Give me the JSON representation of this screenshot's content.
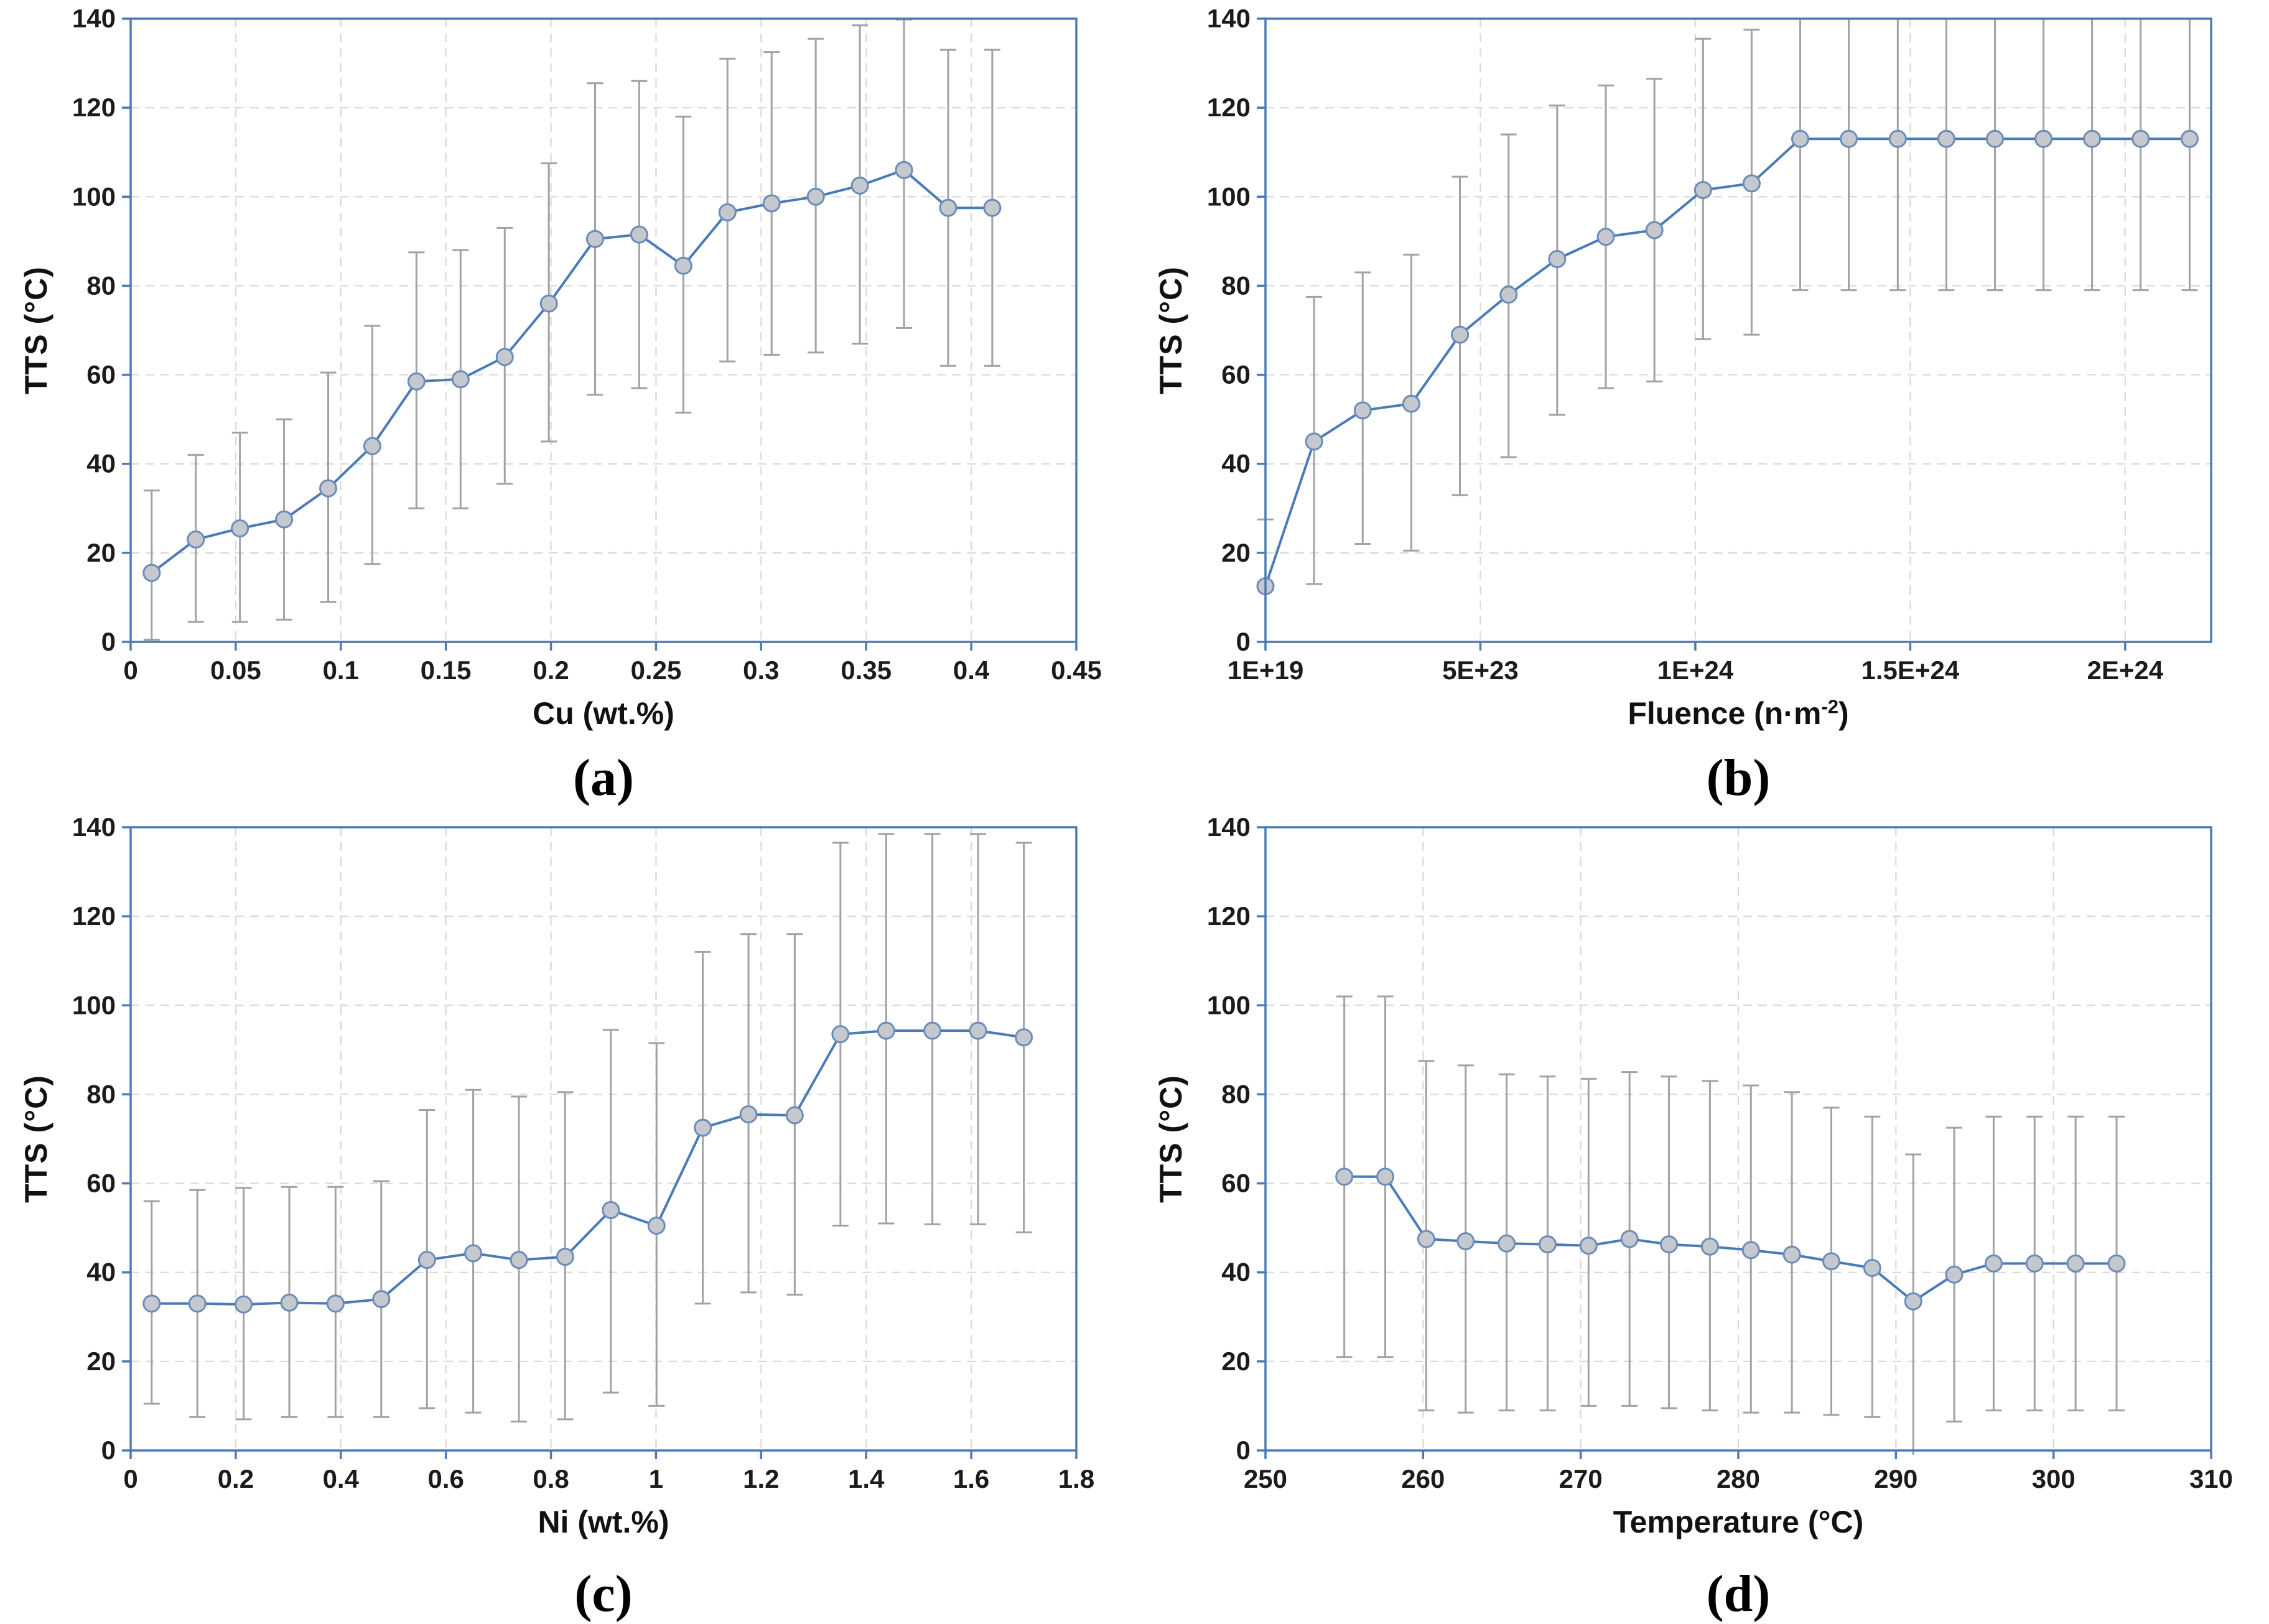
{
  "style": {
    "axis_color": "#4a7bb7",
    "line_color": "#4a7bb7",
    "marker_fill": "#c5c9ce",
    "marker_stroke": "#6b8cba",
    "error_color": "#a2a2a2",
    "grid_color": "#d9d9d9",
    "text_color": "#1b1b1b",
    "background": "#ffffff"
  },
  "chart_data": [
    {
      "type": "line",
      "panel": "(a)",
      "xlabel": "Cu (wt.%)",
      "xlabel_sup": "",
      "xlabel_end": "",
      "ylabel": "TTS (°C)",
      "xlim": [
        0,
        0.45
      ],
      "ylim": [
        0,
        140
      ],
      "grid": true,
      "legend": false,
      "xticks": [
        0,
        0.05,
        0.1,
        0.15,
        0.2,
        0.25,
        0.3,
        0.35,
        0.4,
        0.45
      ],
      "xtick_labels": [
        "0",
        "0.05",
        "0.1",
        "0.15",
        "0.2",
        "0.25",
        "0.3",
        "0.35",
        "0.4",
        "0.45"
      ],
      "yticks": [
        0,
        20,
        40,
        60,
        80,
        100,
        120,
        140
      ],
      "x": [
        0.01,
        0.031,
        0.052,
        0.073,
        0.094,
        0.115,
        0.136,
        0.157,
        0.178,
        0.199,
        0.221,
        0.242,
        0.263,
        0.284,
        0.305,
        0.326,
        0.347,
        0.368,
        0.389,
        0.41
      ],
      "y": [
        15.5,
        23,
        25.5,
        27.5,
        34.5,
        44,
        58.5,
        59,
        64,
        76,
        90.5,
        91.5,
        84.5,
        96.5,
        98.5,
        100,
        102.5,
        106,
        97.5,
        97.5
      ],
      "err_lo": [
        0.5,
        4.5,
        4.5,
        5,
        9,
        17.5,
        30,
        30,
        35.5,
        45,
        55.5,
        57,
        51.5,
        63,
        64.5,
        65,
        67,
        70.5,
        62,
        62
      ],
      "err_hi": [
        34,
        42,
        47,
        50,
        60.5,
        71,
        87.5,
        88,
        93,
        107.5,
        125.5,
        126,
        118,
        131,
        132.5,
        135.5,
        138.5,
        139.8,
        133,
        133
      ]
    },
    {
      "type": "line",
      "panel": "(b)",
      "xlabel": "Fluence (n·m",
      "xlabel_sup": "-2",
      "xlabel_end": ")",
      "ylabel": "TTS (°C)",
      "xlim": [
        1e+19,
        2.2e+24
      ],
      "ylim": [
        0,
        140
      ],
      "grid": true,
      "legend": false,
      "xticks": [
        1e+19,
        5e+23,
        1e+24,
        1.5e+24,
        2e+24
      ],
      "xtick_labels": [
        "1E+19",
        "5E+23",
        "1E+24",
        "1.5E+24",
        "2E+24"
      ],
      "yticks": [
        0,
        20,
        40,
        60,
        80,
        100,
        120,
        140
      ],
      "x": [
        1e+19,
        1.131e+23,
        2.262e+23,
        3.393e+23,
        4.524e+23,
        5.655e+23,
        6.786e+23,
        7.917e+23,
        9.048e+23,
        1.018e+24,
        1.131e+24,
        1.244e+24,
        1.357e+24,
        1.471e+24,
        1.584e+24,
        1.697e+24,
        1.81e+24,
        1.923e+24,
        2.036e+24,
        2.15e+24
      ],
      "y": [
        12.5,
        45,
        52,
        53.5,
        69,
        78,
        86,
        91,
        92.5,
        101.5,
        103,
        113,
        113,
        113,
        113,
        113,
        113,
        113,
        113,
        113
      ],
      "err_lo": [
        -2,
        13,
        22,
        20.5,
        33,
        41.5,
        51,
        57,
        58.5,
        68,
        69,
        79,
        79,
        79,
        79,
        79,
        79,
        79,
        79,
        79
      ],
      "err_hi": [
        27.5,
        77.5,
        83,
        87,
        104.5,
        114,
        120.5,
        125,
        126.5,
        135.5,
        137.5,
        142,
        142,
        142,
        142,
        142,
        142,
        142,
        142,
        142
      ]
    },
    {
      "type": "line",
      "panel": "(c)",
      "xlabel": "Ni (wt.%)",
      "xlabel_sup": "",
      "xlabel_end": "",
      "ylabel": "TTS (°C)",
      "xlim": [
        0,
        1.8
      ],
      "ylim": [
        0,
        140
      ],
      "grid": true,
      "legend": false,
      "xticks": [
        0,
        0.2,
        0.4,
        0.6,
        0.8,
        1,
        1.2,
        1.4,
        1.6,
        1.8
      ],
      "xtick_labels": [
        "0",
        "0.2",
        "0.4",
        "0.6",
        "0.8",
        "1",
        "1.2",
        "1.4",
        "1.6",
        "1.8"
      ],
      "yticks": [
        0,
        20,
        40,
        60,
        80,
        100,
        120,
        140
      ],
      "x": [
        0.04,
        0.127,
        0.215,
        0.302,
        0.39,
        0.477,
        0.564,
        0.652,
        0.739,
        0.827,
        0.914,
        1.001,
        1.089,
        1.176,
        1.264,
        1.351,
        1.438,
        1.526,
        1.613,
        1.7
      ],
      "y": [
        33,
        33,
        32.8,
        33.2,
        33,
        34,
        42.8,
        44.3,
        42.8,
        43.5,
        54,
        50.5,
        72.5,
        75.5,
        75.3,
        93.5,
        94.3,
        94.3,
        94.3,
        92.8
      ],
      "err_lo": [
        10.5,
        7.5,
        7,
        7.5,
        7.5,
        7.5,
        9.5,
        8.5,
        6.5,
        7,
        13,
        10,
        33,
        35.5,
        35,
        50.5,
        51,
        50.8,
        50.8,
        49
      ],
      "err_hi": [
        56,
        58.5,
        59,
        59.2,
        59.2,
        60.5,
        76.5,
        81,
        79.5,
        80.5,
        94.5,
        91.5,
        112,
        116,
        116,
        136.5,
        138.5,
        138.5,
        138.5,
        136.5
      ]
    },
    {
      "type": "line",
      "panel": "(d)",
      "xlabel": "Temperature (°C)",
      "xlabel_sup": "",
      "xlabel_end": "",
      "ylabel": "TTS (°C)",
      "xlim": [
        250,
        310
      ],
      "ylim": [
        0,
        140
      ],
      "grid": true,
      "legend": false,
      "xticks": [
        250,
        260,
        270,
        280,
        290,
        300,
        310
      ],
      "xtick_labels": [
        "250",
        "260",
        "270",
        "280",
        "290",
        "300",
        "310"
      ],
      "yticks": [
        0,
        20,
        40,
        60,
        80,
        100,
        120,
        140
      ],
      "x": [
        255,
        257.6,
        260.2,
        262.7,
        265.3,
        267.9,
        270.5,
        273.1,
        275.6,
        278.2,
        280.8,
        283.4,
        285.9,
        288.5,
        291.1,
        293.7,
        296.2,
        298.8,
        301.4,
        304
      ],
      "y": [
        61.5,
        61.5,
        47.5,
        47,
        46.5,
        46.3,
        46,
        47.5,
        46.3,
        45.8,
        45,
        44,
        42.5,
        41,
        33.5,
        39.5,
        42,
        42,
        42,
        42
      ],
      "err_lo": [
        21,
        21,
        9,
        8.5,
        9,
        9,
        10,
        10,
        9.5,
        9,
        8.5,
        8.5,
        8,
        7.5,
        -1,
        6.5,
        9,
        9,
        9,
        9
      ],
      "err_hi": [
        102,
        102,
        87.5,
        86.5,
        84.5,
        84,
        83.5,
        85,
        84,
        83,
        82,
        80.5,
        77,
        75,
        66.5,
        72.5,
        75,
        75,
        75,
        75
      ]
    }
  ]
}
